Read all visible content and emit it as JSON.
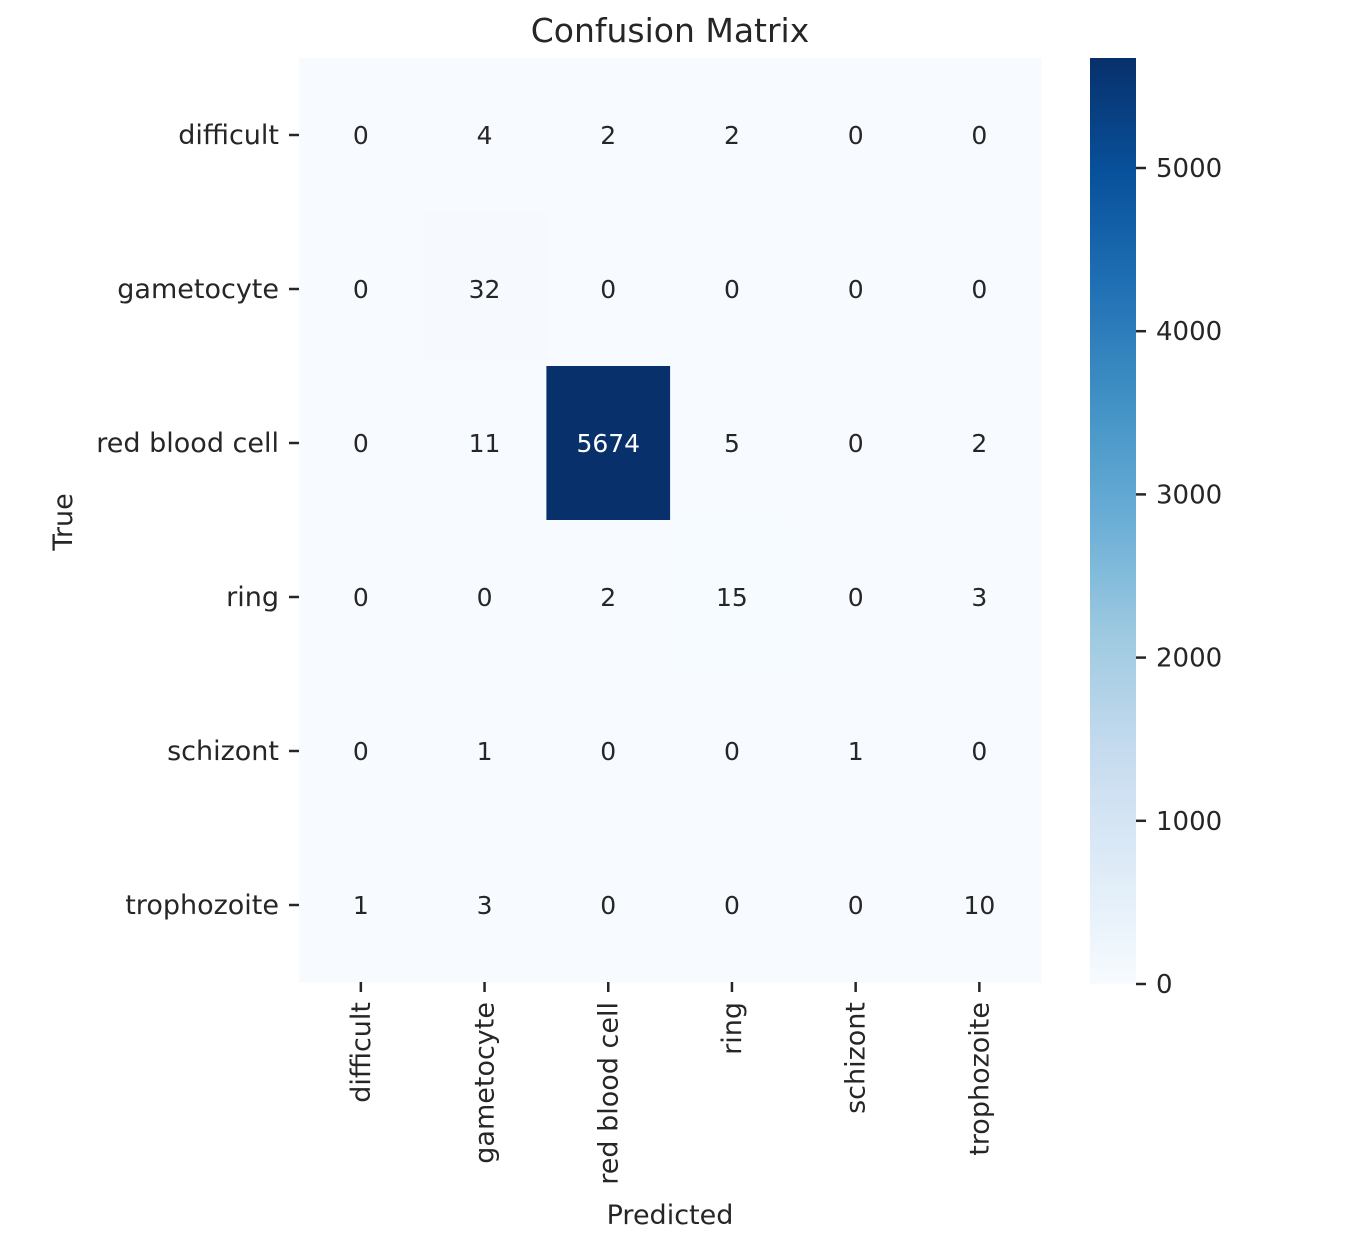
{
  "chart_data": {
    "type": "heatmap",
    "title": "Confusion Matrix",
    "xlabel": "Predicted",
    "ylabel": "True",
    "x_categories": [
      "difficult",
      "gametocyte",
      "red blood cell",
      "ring",
      "schizont",
      "trophozoite"
    ],
    "y_categories": [
      "difficult",
      "gametocyte",
      "red blood cell",
      "ring",
      "schizont",
      "trophozoite"
    ],
    "values": [
      [
        0,
        4,
        2,
        2,
        0,
        0
      ],
      [
        0,
        32,
        0,
        0,
        0,
        0
      ],
      [
        0,
        11,
        5674,
        5,
        0,
        2
      ],
      [
        0,
        0,
        2,
        15,
        0,
        3
      ],
      [
        0,
        1,
        0,
        0,
        1,
        0
      ],
      [
        1,
        3,
        0,
        0,
        0,
        10
      ]
    ],
    "colormap": "Blues",
    "colorbar": {
      "range": [
        0,
        5674
      ],
      "ticks": [
        0,
        1000,
        2000,
        3000,
        4000,
        5000
      ],
      "colors": [
        "#f7fbff",
        "#deebf7",
        "#c6dbef",
        "#9ecae1",
        "#6baed6",
        "#4292c6",
        "#2171b5",
        "#08519c",
        "#08306b"
      ]
    },
    "grid": false
  }
}
